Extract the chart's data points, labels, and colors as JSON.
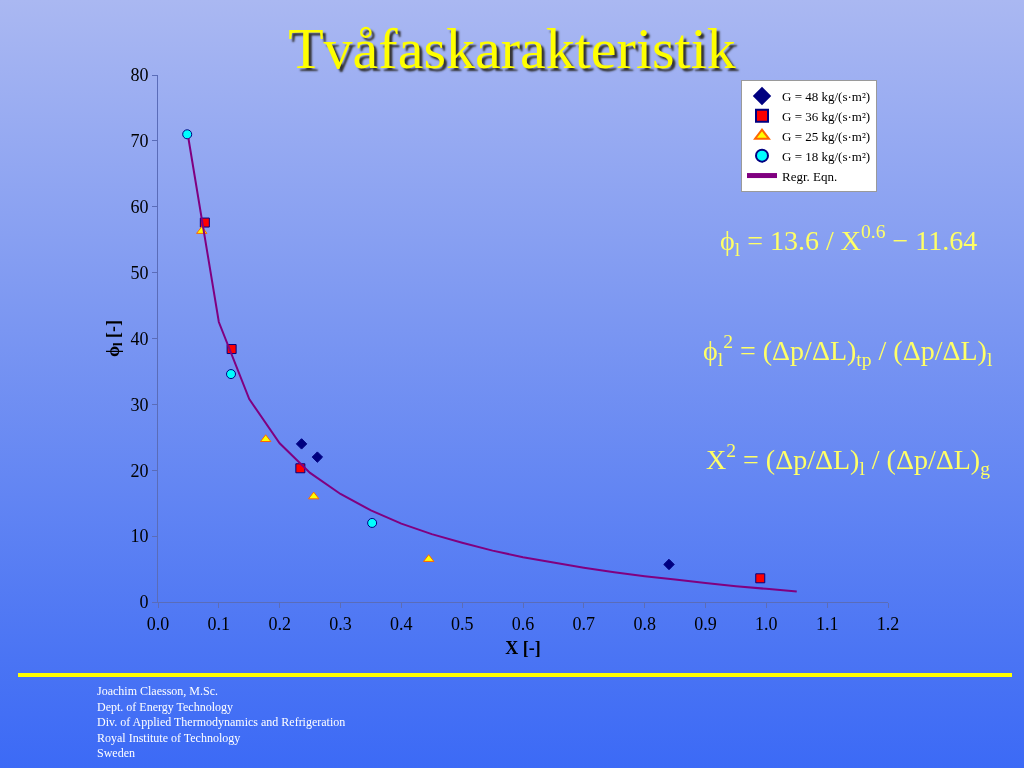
{
  "chart_data": {
    "type": "scatter",
    "title": "Tvåfaskarakteristik",
    "xlabel": "X [-]",
    "ylabel": "ϕ$_{l}$ [-]",
    "xlim": [
      0,
      1.2
    ],
    "xticks": [
      {
        "value": 0,
        "label": "0.0"
      },
      0.1,
      0.2,
      0.3,
      0.4,
      0.5,
      0.6,
      0.7,
      0.8,
      0.9,
      {
        "value": 1,
        "label": "1.0"
      },
      1.1,
      1.2
    ],
    "ylim": [
      0,
      80
    ],
    "yticks": [
      0,
      10,
      20,
      30,
      40,
      50,
      60,
      70,
      80
    ],
    "legend": "top right",
    "series": [
      {
        "name": "G = 48 kg/(s·m²)",
        "color": "#000080",
        "marker": "diamond",
        "x": [
          0.236,
          0.262,
          0.84
        ],
        "values": [
          24.0,
          22.0,
          5.7
        ]
      },
      {
        "name": "G = 36 kg/(s·m²)",
        "color": "#ff0000",
        "marker": "square",
        "x": [
          0.077,
          0.121,
          0.234,
          0.99
        ],
        "values": [
          57.6,
          38.4,
          20.3,
          3.6
        ]
      },
      {
        "name": "G = 25 kg/(s·m²)",
        "color": "#ffff00",
        "marker": "triangle",
        "x": [
          0.072,
          0.177,
          0.256,
          0.445
        ],
        "values": [
          56.3,
          24.7,
          16.0,
          6.5
        ]
      },
      {
        "name": "G = 18 kg/(s·m²)",
        "color": "#00ffff",
        "marker": "circle",
        "x": [
          0.048,
          0.12,
          0.352
        ],
        "values": [
          71.0,
          34.6,
          12.0
        ]
      },
      {
        "name": "Regr. Eqn.",
        "type": "line",
        "color": "#800080",
        "marker": "none",
        "x": [
          0.05,
          0.1,
          0.15,
          0.2,
          0.25,
          0.3,
          0.35,
          0.4,
          0.45,
          0.5,
          0.55,
          0.6,
          0.65,
          0.7,
          0.75,
          0.8,
          0.85,
          0.9,
          0.95,
          1.0,
          1.05
        ],
        "values": [
          70.4,
          42.5,
          30.8,
          24.1,
          19.6,
          16.4,
          13.9,
          11.9,
          10.3,
          9.0,
          7.8,
          6.8,
          6.0,
          5.2,
          4.5,
          3.9,
          3.4,
          2.9,
          2.4,
          2.0,
          1.6
        ]
      }
    ],
    "annotations": [
      "ϕ$_{l}$ = 13.6 / X$^{0.6}$ − 11.64",
      "ϕ$_{l}$$^{2}$ = (Δp/ΔL)$_{tp}$ / (Δp/ΔL)$_{l}$",
      "X$^{2}$ = (Δp/ΔL)$_{l}$ / (Δp/ΔL)$_{g}$",
      "Joachim Claesson, M.Sc.\nDept. of Energy Technology\nDiv. of Applied Thermodynamics and Refrigeration\nRoyal Institute of Technology\nSweden"
    ]
  }
}
